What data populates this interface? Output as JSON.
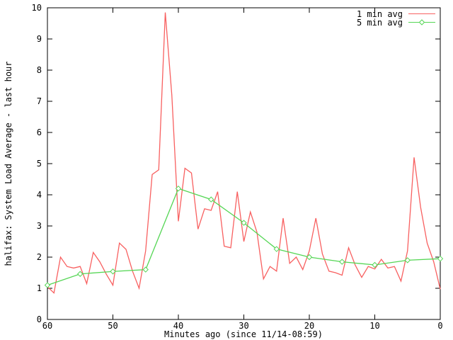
{
  "chart_data": {
    "type": "line",
    "title": "",
    "ylabel": "halifax: System Load Average - last hour",
    "xlabel": "Minutes ago (since 11/14-08:59)",
    "xlim": [
      60,
      0
    ],
    "ylim": [
      0,
      10
    ],
    "x_ticks": [
      60,
      50,
      40,
      30,
      20,
      10,
      0
    ],
    "y_ticks": [
      0,
      1,
      2,
      3,
      4,
      5,
      6,
      7,
      8,
      9,
      10
    ],
    "grid": false,
    "legend_position": "top-right-inside",
    "axis_color": "#000000",
    "background_color": "#ffffff",
    "series": [
      {
        "name": "1 min avg",
        "color": "#f86060",
        "marker": "none",
        "x": [
          60,
          59,
          58,
          57,
          56,
          55,
          54,
          53,
          52,
          51,
          50,
          49,
          48,
          47,
          46,
          45,
          44,
          43,
          42,
          41,
          40,
          39,
          38,
          37,
          36,
          35,
          34,
          33,
          32,
          31,
          30,
          29,
          28,
          27,
          26,
          25,
          24,
          23,
          22,
          21,
          20,
          19,
          18,
          17,
          16,
          15,
          14,
          13,
          12,
          11,
          10,
          9,
          8,
          7,
          6,
          5,
          4,
          3,
          2,
          1,
          0
        ],
        "values": [
          1.05,
          0.85,
          2.0,
          1.7,
          1.65,
          1.7,
          1.15,
          2.15,
          1.85,
          1.45,
          1.1,
          2.45,
          2.25,
          1.55,
          1.0,
          2.2,
          4.65,
          4.8,
          9.85,
          7.2,
          3.15,
          4.85,
          4.7,
          2.9,
          3.55,
          3.5,
          4.1,
          2.35,
          2.3,
          4.1,
          2.5,
          3.45,
          2.8,
          1.3,
          1.7,
          1.55,
          3.25,
          1.8,
          2.0,
          1.6,
          2.2,
          3.25,
          2.1,
          1.55,
          1.5,
          1.42,
          2.3,
          1.75,
          1.35,
          1.7,
          1.62,
          1.93,
          1.65,
          1.7,
          1.23,
          2.2,
          5.2,
          3.6,
          2.45,
          1.85,
          0.97
        ]
      },
      {
        "name": "5 min avg",
        "color": "#55d655",
        "marker": "diamond",
        "x": [
          60,
          55,
          50,
          45,
          40,
          35,
          30,
          25,
          20,
          15,
          10,
          5,
          0
        ],
        "values": [
          1.1,
          1.46,
          1.54,
          1.6,
          4.2,
          3.85,
          3.1,
          2.26,
          2.0,
          1.85,
          1.75,
          1.9,
          1.95
        ]
      }
    ]
  }
}
